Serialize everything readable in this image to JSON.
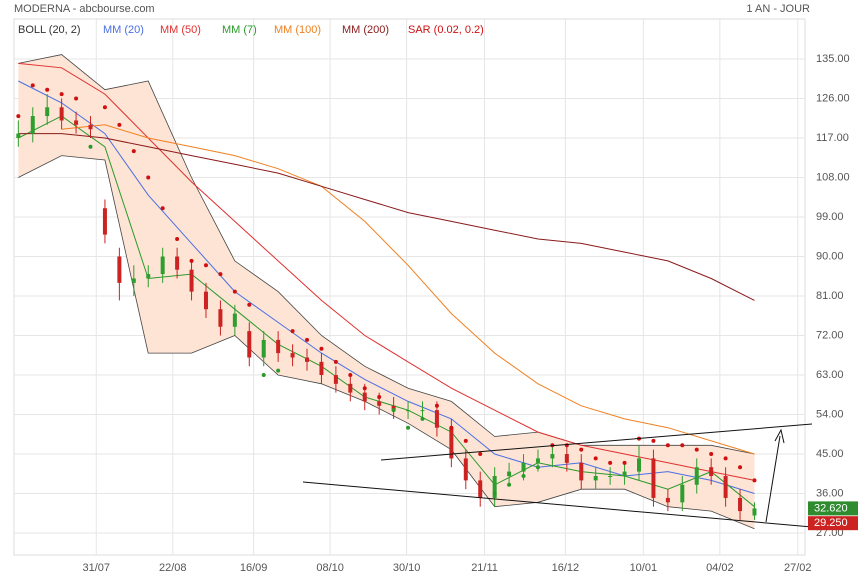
{
  "chart_data": {
    "type": "candlestick",
    "title": "MODERNA - abcbourse.com",
    "period": "1 AN - JOUR",
    "xlim": [
      -0.3,
      54.5
    ],
    "ylim": [
      22,
      144
    ],
    "yticks": [
      {
        "value": 27,
        "label": "27.00"
      },
      {
        "value": 36,
        "label": "36.00"
      },
      {
        "value": 45,
        "label": "45.00"
      },
      {
        "value": 54,
        "label": "54.00"
      },
      {
        "value": 63,
        "label": "63.00"
      },
      {
        "value": 72,
        "label": "72.00"
      },
      {
        "value": 81,
        "label": "81.00"
      },
      {
        "value": 90,
        "label": "90.00"
      },
      {
        "value": 99,
        "label": "99.00"
      },
      {
        "value": 108,
        "label": "108.00"
      },
      {
        "value": 117,
        "label": "117.00"
      },
      {
        "value": 126,
        "label": "126.00"
      },
      {
        "value": 135,
        "label": "135.00"
      }
    ],
    "xticks": [
      {
        "value": 5.4,
        "label": "31/07"
      },
      {
        "value": 10.7,
        "label": "22/08"
      },
      {
        "value": 16.3,
        "label": "16/09"
      },
      {
        "value": 21.6,
        "label": "08/10"
      },
      {
        "value": 26.9,
        "label": "30/10"
      },
      {
        "value": 32.3,
        "label": "21/11"
      },
      {
        "value": 37.9,
        "label": "16/12"
      },
      {
        "value": 43.3,
        "label": "10/01"
      },
      {
        "value": 48.6,
        "label": "04/02"
      },
      {
        "value": 54,
        "label": "27/02"
      }
    ],
    "grid": true,
    "up_color": "#2e9e2e",
    "down_color": "#cc2222",
    "open": [
      117,
      118,
      122,
      124,
      121,
      120,
      101,
      90,
      84,
      85,
      86,
      90,
      87,
      82,
      78,
      74,
      73,
      67,
      71,
      68,
      67,
      66,
      63,
      61,
      59,
      57,
      56,
      55,
      55,
      55,
      51,
      44,
      39,
      35,
      40,
      41,
      43,
      44,
      45,
      43,
      39,
      40,
      40,
      41,
      44,
      35,
      34,
      38,
      42,
      40,
      35,
      31
    ],
    "high": [
      121,
      124,
      127,
      126,
      123,
      122,
      103,
      92,
      88,
      88,
      92,
      92,
      89,
      84,
      80,
      79,
      75,
      73,
      73,
      70,
      69,
      68,
      65,
      63,
      61,
      59,
      58,
      57,
      57,
      57,
      53,
      46,
      41,
      42,
      43,
      45,
      46,
      47,
      47,
      45,
      42,
      42,
      43,
      47,
      46,
      37,
      40,
      44,
      44,
      42,
      37,
      34
    ],
    "low": [
      115,
      116,
      120,
      119,
      118,
      117,
      93,
      80,
      81,
      83,
      84,
      85,
      80,
      76,
      72,
      72,
      65,
      65,
      66,
      65,
      64,
      61,
      59,
      57,
      55,
      54,
      53,
      53,
      53,
      49,
      42,
      37,
      33,
      33,
      38,
      39,
      41,
      42,
      41,
      37,
      37,
      38,
      38,
      39,
      33,
      32,
      32,
      36,
      38,
      33,
      30,
      30
    ],
    "close": [
      118,
      122,
      124,
      121,
      120,
      119,
      95,
      84,
      85,
      86,
      90,
      87,
      82,
      78,
      74,
      77,
      67,
      71,
      68,
      67,
      66,
      63,
      61,
      59,
      57,
      56,
      55,
      55,
      55,
      51,
      44,
      39,
      35,
      40,
      41,
      43,
      44,
      45,
      43,
      39,
      40,
      40,
      41,
      44,
      35,
      34,
      38,
      42,
      40,
      35,
      32,
      32.62
    ],
    "bollinger": {
      "name": "BOLL (20, 2)",
      "color": "#444444",
      "fill": "#fde4d4",
      "x": [
        0,
        3,
        6,
        9,
        12,
        15,
        18,
        21,
        24,
        27,
        30,
        33,
        36,
        39,
        42,
        45,
        48,
        51
      ],
      "upper": [
        134,
        136,
        128,
        130,
        108,
        89,
        82,
        72,
        65,
        60,
        57,
        49,
        50,
        47,
        47,
        47,
        47,
        45
      ],
      "lower": [
        108,
        113,
        112,
        68,
        68,
        72,
        63,
        61,
        57,
        52,
        46,
        33,
        34,
        37,
        37,
        33,
        32,
        28
      ]
    },
    "series": [
      {
        "name": "MM (20)",
        "color": "#4a6fe3",
        "x": [
          0,
          3,
          6,
          9,
          12,
          15,
          18,
          21,
          24,
          27,
          30,
          33,
          36,
          39,
          42,
          45,
          48,
          51
        ],
        "values": [
          130,
          125,
          118,
          104,
          93,
          82,
          75,
          68,
          62,
          57,
          53,
          45,
          42,
          43,
          40,
          41,
          39,
          36
        ]
      },
      {
        "name": "MM (50)",
        "color": "#e03030",
        "x": [
          0,
          3,
          6,
          9,
          12,
          15,
          18,
          21,
          24,
          27,
          30,
          33,
          36,
          39,
          42,
          45,
          48,
          51
        ],
        "values": [
          134,
          133,
          127,
          117,
          107,
          98,
          89,
          80,
          72,
          66,
          60,
          55,
          50,
          47,
          45,
          43,
          41,
          39
        ]
      },
      {
        "name": "MM (7)",
        "color": "#2a9a2a",
        "x": [
          0,
          3,
          6,
          9,
          12,
          15,
          18,
          21,
          24,
          27,
          30,
          33,
          36,
          39,
          42,
          45,
          48,
          51
        ],
        "values": [
          117,
          122,
          115,
          85,
          86,
          78,
          70,
          65,
          58,
          55,
          50,
          38,
          43,
          41,
          40,
          37,
          41,
          33
        ]
      },
      {
        "name": "MM (100)",
        "color": "#f08020",
        "x": [
          0,
          3,
          6,
          9,
          12,
          15,
          18,
          21,
          24,
          27,
          30,
          33,
          36,
          39,
          42,
          45,
          48,
          51
        ],
        "values": [
          null,
          119,
          120,
          117,
          115,
          113,
          110,
          106,
          98,
          88,
          77,
          68,
          61,
          56,
          53,
          51,
          48,
          45
        ]
      },
      {
        "name": "MM (200)",
        "color": "#8b1a1a",
        "x": [
          0,
          3,
          6,
          9,
          12,
          15,
          18,
          21,
          24,
          27,
          30,
          33,
          36,
          39,
          42,
          45,
          48,
          51
        ],
        "values": [
          118,
          118,
          117,
          115,
          113,
          111,
          109,
          106,
          103,
          100,
          98,
          96,
          94,
          93,
          91,
          89,
          85,
          80
        ]
      }
    ],
    "sar": {
      "name": "SAR (0.02, 0.2)",
      "color": "#d01010",
      "below_color": "#2a9a2a",
      "values": [
        122,
        129,
        128,
        127,
        126,
        115,
        124,
        120,
        114,
        108,
        101,
        94,
        89,
        88,
        86,
        82,
        79,
        63,
        64,
        73,
        71,
        69,
        66,
        63,
        60,
        58,
        55,
        51,
        53,
        56,
        51,
        48,
        45,
        36,
        38,
        40,
        42,
        47,
        47,
        46,
        44,
        43,
        43,
        48.5,
        48,
        47,
        47,
        46,
        45,
        44,
        42,
        39
      ]
    },
    "price_markers": [
      {
        "value": 32.62,
        "label": "32.620",
        "color": "#2e8b2e"
      },
      {
        "value": 29.25,
        "label": "29.250",
        "color": "#cc2222"
      }
    ]
  }
}
